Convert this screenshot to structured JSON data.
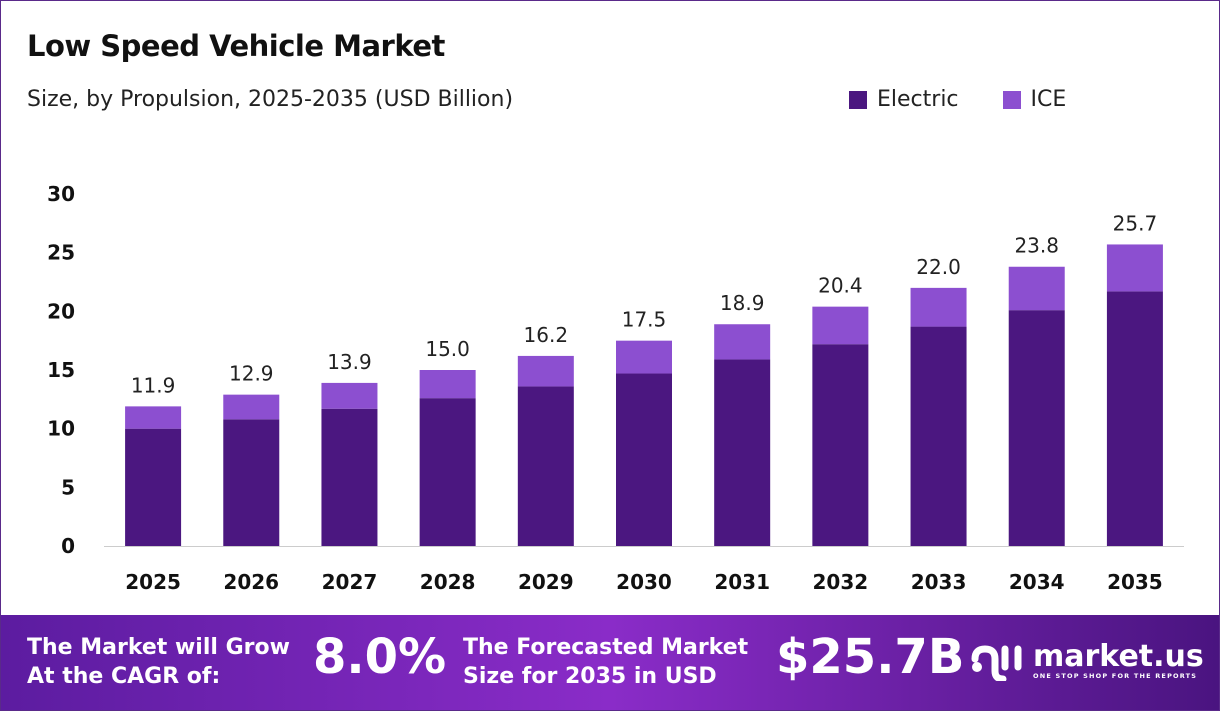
{
  "header": {
    "title": "Low Speed Vehicle Market",
    "subtitle": "Size, by Propulsion, 2025-2035 (USD Billion)"
  },
  "chart_data": {
    "type": "bar",
    "stacked": true,
    "categories": [
      "2025",
      "2026",
      "2027",
      "2028",
      "2029",
      "2030",
      "2031",
      "2032",
      "2033",
      "2034",
      "2035"
    ],
    "series": [
      {
        "name": "Electric",
        "color": "#4b1780",
        "values": [
          10.0,
          10.8,
          11.7,
          12.6,
          13.6,
          14.7,
          15.9,
          17.2,
          18.7,
          20.1,
          21.7
        ]
      },
      {
        "name": "ICE",
        "color": "#8c4fd0",
        "values": [
          1.9,
          2.1,
          2.2,
          2.4,
          2.6,
          2.8,
          3.0,
          3.2,
          3.3,
          3.7,
          4.0
        ]
      }
    ],
    "totals": [
      "11.9",
      "12.9",
      "13.9",
      "15.0",
      "16.2",
      "17.5",
      "18.9",
      "20.4",
      "22.0",
      "23.8",
      "25.7"
    ],
    "ylim": [
      0,
      30
    ],
    "yticks": [
      "0",
      "5",
      "10",
      "15",
      "20",
      "25",
      "30"
    ],
    "grid": false,
    "legend": "top-right"
  },
  "banner": {
    "cagr_label_1": "The Market will Grow",
    "cagr_label_2": "At the CAGR of:",
    "cagr_value": "8.0%",
    "forecast_label_1": "The Forecasted Market",
    "forecast_label_2": "Size for 2035 in USD",
    "forecast_value": "$25.7B",
    "logo_name": "market.us",
    "logo_tagline": "ONE STOP SHOP FOR THE REPORTS"
  }
}
